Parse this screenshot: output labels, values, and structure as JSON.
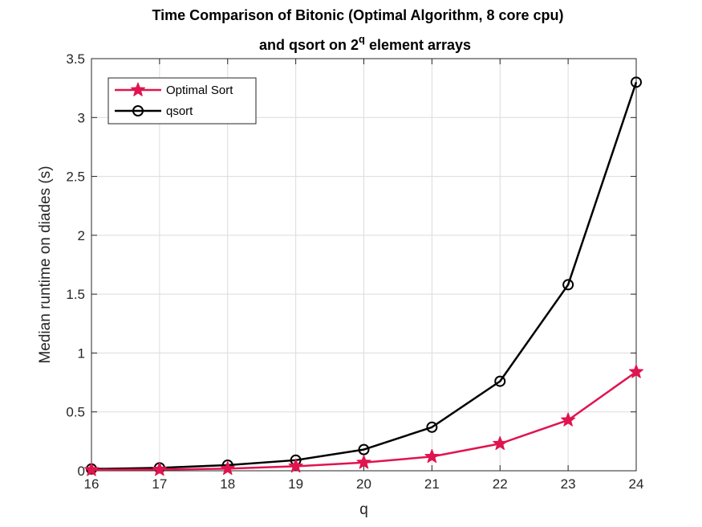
{
  "chart_data": {
    "type": "line",
    "title_line1": "Time Comparison of Bitonic (Optimal Algorithm, 8 core cpu)",
    "title_line2_prefix": "and qsort on 2",
    "title_line2_sup": "q",
    "title_line2_suffix": " element arrays",
    "xlabel": "q",
    "ylabel": "Median runtime on diades (s)",
    "x": [
      16,
      17,
      18,
      19,
      20,
      21,
      22,
      23,
      24
    ],
    "xlim": [
      16,
      24
    ],
    "ylim": [
      0,
      3.5
    ],
    "xticks": [
      "16",
      "17",
      "18",
      "19",
      "20",
      "21",
      "22",
      "23",
      "24"
    ],
    "yticks": [
      "0",
      "0.5",
      "1",
      "1.5",
      "2",
      "2.5",
      "3",
      "3.5"
    ],
    "grid": true,
    "legend_position": "top-left",
    "series": [
      {
        "name": "Optimal Sort",
        "color": "#e0144f",
        "marker": "star",
        "values": [
          0.008,
          0.01,
          0.018,
          0.038,
          0.07,
          0.12,
          0.23,
          0.43,
          0.84
        ]
      },
      {
        "name": "qsort",
        "color": "#000000",
        "marker": "circle",
        "values": [
          0.015,
          0.025,
          0.048,
          0.09,
          0.18,
          0.37,
          0.76,
          1.58,
          3.3
        ]
      }
    ]
  }
}
